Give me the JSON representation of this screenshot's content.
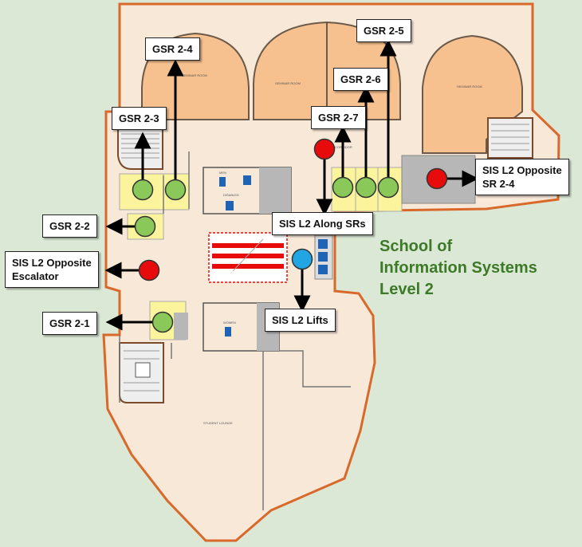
{
  "title": {
    "line1": "School of",
    "line2": "Information Systems",
    "line3": "Level 2"
  },
  "labels": {
    "gsr_2_1": "GSR 2-1",
    "gsr_2_2": "GSR 2-2",
    "gsr_2_3": "GSR 2-3",
    "gsr_2_4": "GSR 2-4",
    "gsr_2_5": "GSR 2-5",
    "gsr_2_6": "GSR 2-6",
    "gsr_2_7": "GSR 2-7",
    "sis_l2_opposite_escalator_line1": "SIS L2 Opposite",
    "sis_l2_opposite_escalator_line2": "Escalator",
    "sis_l2_along_srs": "SIS L2 Along SRs",
    "sis_l2_lifts": "SIS L2 Lifts",
    "sis_l2_opposite_sr_line1": "SIS L2 Opposite",
    "sis_l2_opposite_sr_line2": "SR 2-4"
  },
  "plan_text": {
    "seminar_room_1": "SEMINAR ROOM",
    "seminar_room_2": "SEMINAR ROOM",
    "seminar_room_3": "SEMINAR ROOM",
    "corridor": "CORRIDOR",
    "men": "MEN",
    "women": "WOMEN",
    "disabled": "DISABLED",
    "student_lounge": "STUDENT LOUNGE"
  },
  "colors": {
    "background": "#dbe8d5",
    "floor": "#f8e8d8",
    "outline": "#d9692a",
    "seminar": "#f6c08f",
    "gsr_room": "#fbf49c",
    "green_marker": "#8bc85a",
    "red_marker": "#e80b0b",
    "blue_marker": "#21a6e3",
    "title_text": "#3d7a28"
  }
}
